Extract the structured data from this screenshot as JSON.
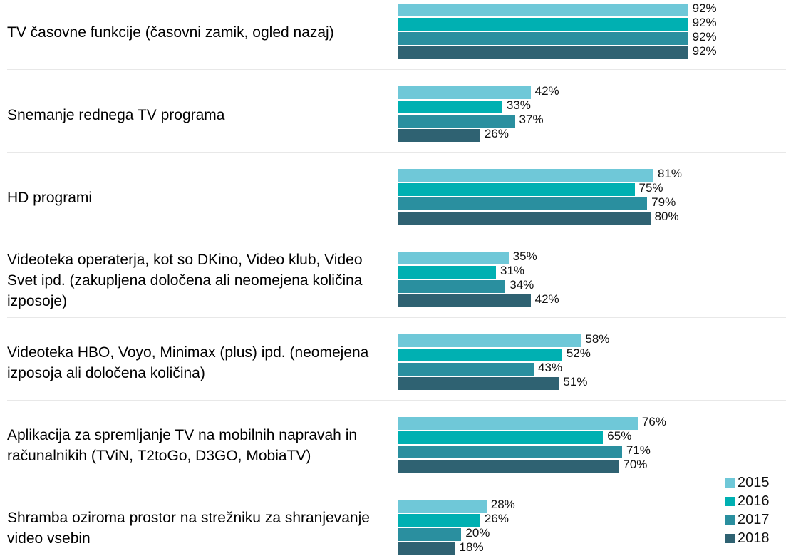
{
  "chart_data": {
    "type": "bar",
    "orientation": "horizontal",
    "categories": [
      "TV časovne funkcije (časovni zamik, ogled nazaj)",
      "Snemanje rednega TV programa",
      "HD programi",
      "Videoteka operaterja, kot so DKino, Video klub, Video Svet ipd. (zakupljena določena ali neomejena količina izposoje)",
      "Videoteka HBO, Voyo, Minimax (plus) ipd. (neomejena izposoja ali določena količina)",
      "Aplikacija za spremljanje TV na mobilnih napravah in računalnikih (TViN, T2toGo, D3GO, MobiaTV)",
      "Shramba oziroma prostor na strežniku za shranjevanje video vsebin"
    ],
    "series": [
      {
        "name": "2015",
        "color": "#6fc8d8",
        "values": [
          92,
          42,
          81,
          35,
          58,
          76,
          28
        ],
        "value_labels": [
          "92%",
          "42%",
          "81%",
          "35%",
          "58%",
          "76%",
          "28%"
        ]
      },
      {
        "name": "2016",
        "color": "#00b0b2",
        "values": [
          92,
          33,
          75,
          31,
          52,
          65,
          26
        ],
        "value_labels": [
          "92%",
          "33%",
          "75%",
          "31%",
          "52%",
          "65%",
          "26%"
        ]
      },
      {
        "name": "2017",
        "color": "#2a8f9f",
        "values": [
          92,
          37,
          79,
          34,
          43,
          71,
          20
        ],
        "value_labels": [
          "92%",
          "37%",
          "79%",
          "34%",
          "43%",
          "71%",
          "20%"
        ]
      },
      {
        "name": "2018",
        "color": "#2f6272",
        "values": [
          92,
          26,
          80,
          42,
          51,
          70,
          18
        ],
        "value_labels": [
          "92%",
          "26%",
          "80%",
          "42%",
          "51%",
          "70%",
          "18%"
        ]
      }
    ],
    "xlim": [
      0,
      100
    ],
    "legend": "bottom-right"
  }
}
